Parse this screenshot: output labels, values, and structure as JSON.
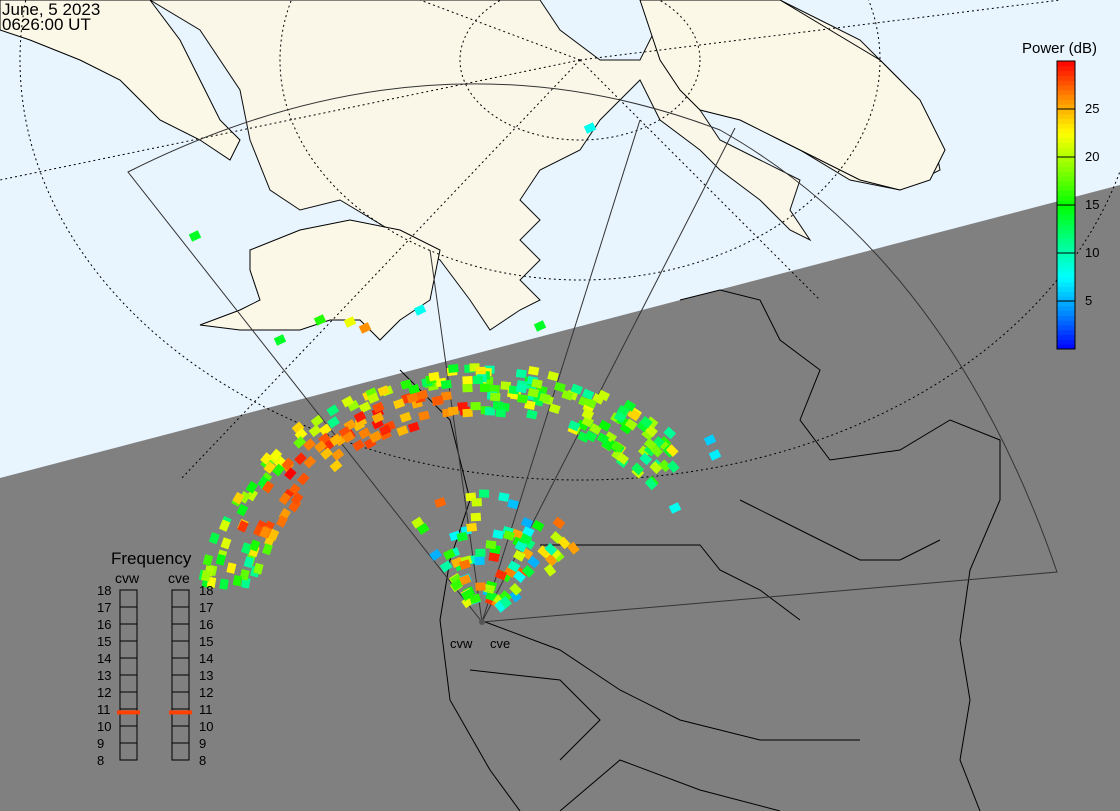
{
  "header": {
    "date": "June, 5 2023",
    "time": "0626:00 UT"
  },
  "colorbar": {
    "title": "Power (dB)",
    "range": [
      0,
      30
    ],
    "ticks": [
      "25",
      "20",
      "15",
      "10",
      "5"
    ],
    "colors": [
      "#0000ff",
      "#0088ff",
      "#00ffff",
      "#00ff88",
      "#00ff00",
      "#88ff00",
      "#ffff00",
      "#ff8800",
      "#ff0000"
    ]
  },
  "radars": {
    "west": "cvw",
    "east": "cve"
  },
  "frequency": {
    "title": "Frequency",
    "ticks": [
      "18",
      "17",
      "16",
      "15",
      "14",
      "13",
      "12",
      "11",
      "10",
      "9",
      "8"
    ],
    "cvw_mhz": 10.8,
    "cve_mhz": 10.8,
    "marker_color": "#ff4000"
  },
  "map": {
    "day_color": "#e8f4fe",
    "night_color": "#808080",
    "land_day_color": "#fbf8e8"
  }
}
